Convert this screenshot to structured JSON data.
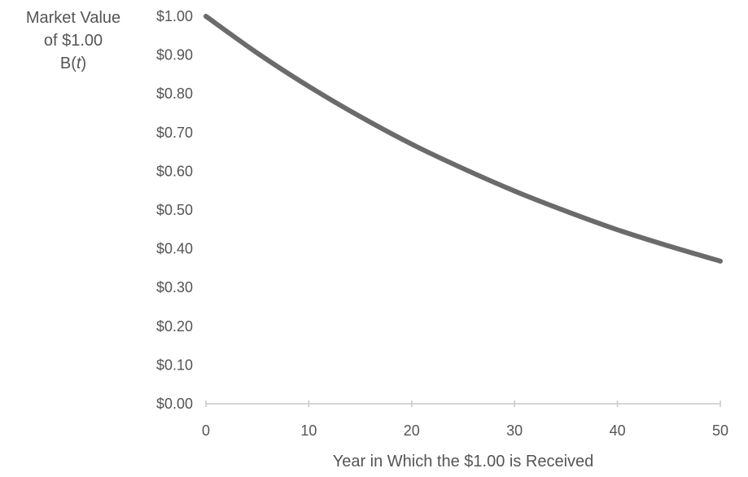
{
  "chart_data": {
    "type": "line",
    "title": "",
    "xlabel": "Year in Which the $1.00 is Received",
    "ylabel_lines": [
      "Market Value",
      "of $1.00",
      "B(t)"
    ],
    "ylabel_italic_token": "t",
    "xlim": [
      0,
      50
    ],
    "ylim": [
      0,
      1
    ],
    "x_ticks": [
      "0",
      "10",
      "20",
      "30",
      "40",
      "50"
    ],
    "y_ticks": [
      "$0.00",
      "$0.10",
      "$0.20",
      "$0.30",
      "$0.40",
      "$0.50",
      "$0.60",
      "$0.70",
      "$0.80",
      "$0.90",
      "$1.00"
    ],
    "grid": false,
    "legend": "none",
    "line_color": "#6b6b6b",
    "axis_color": "#c8c8c8",
    "text_color": "#555555",
    "series": [
      {
        "x": [
          0,
          5,
          10,
          15,
          20,
          25,
          30,
          35,
          40,
          45,
          50
        ],
        "values": [
          1.0,
          0.905,
          0.819,
          0.741,
          0.67,
          0.607,
          0.549,
          0.497,
          0.449,
          0.407,
          0.368
        ]
      }
    ]
  }
}
